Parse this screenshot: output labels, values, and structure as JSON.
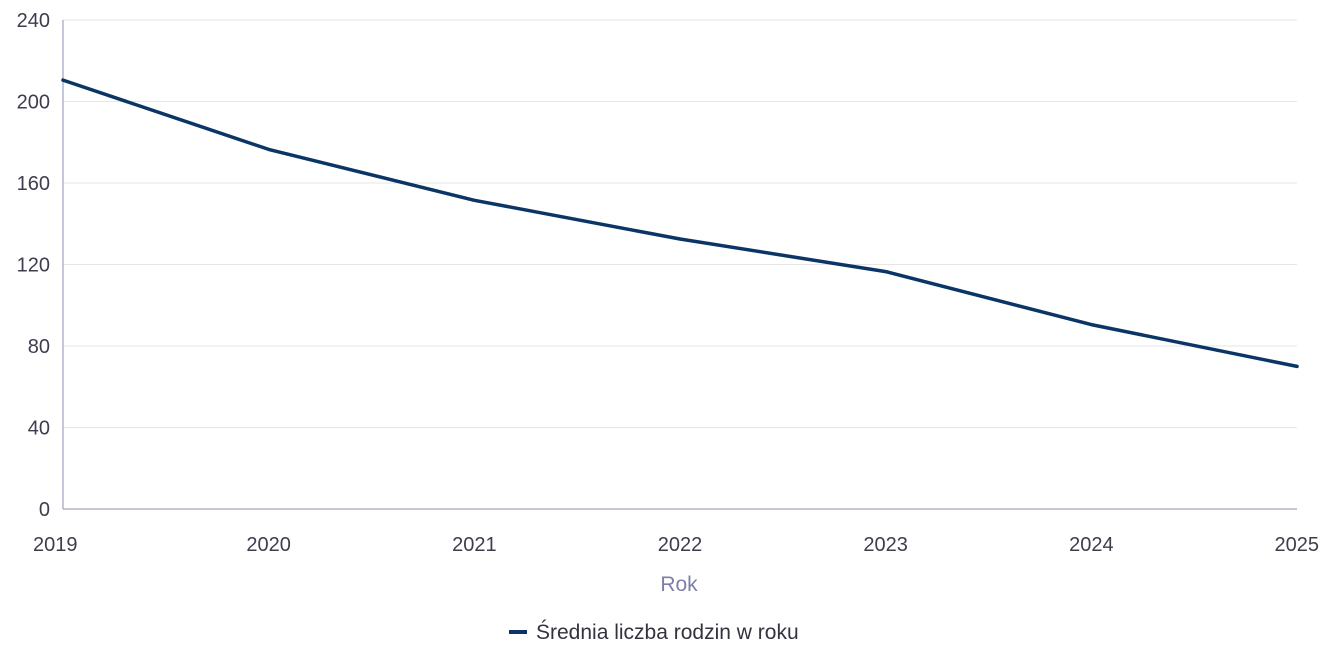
{
  "chart_data": {
    "type": "line",
    "title": "",
    "xlabel": "Rok",
    "ylabel": "",
    "x": [
      "2019",
      "2020",
      "2021",
      "2022",
      "2023",
      "2024",
      "2025"
    ],
    "ylim": [
      0,
      240
    ],
    "yticks": [
      0,
      40,
      80,
      120,
      160,
      200,
      240
    ],
    "grid": true,
    "legend_position": "bottom",
    "series": [
      {
        "name": "Średnia liczba rodzin w roku",
        "color": "#0b3566",
        "values": [
          210.5,
          176.5,
          151.5,
          132.5,
          116.5,
          90.5,
          70
        ]
      }
    ]
  },
  "colors": {
    "grid": "#e6e6e6",
    "axis": "#8e8fb5",
    "tick_text": "#3d3d4d",
    "axis_title": "#7e7fa8"
  }
}
